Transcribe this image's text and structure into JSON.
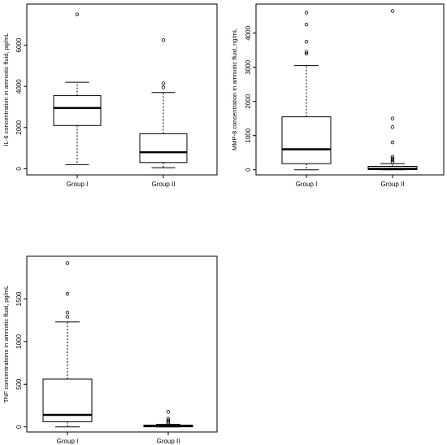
{
  "chart_data": [
    {
      "type": "boxplot",
      "ylabel": "IL-6 concentration in amniotic fluid, pg/mL",
      "categories": [
        "Group I",
        "Group II"
      ],
      "ylim": [
        -300,
        8000
      ],
      "yticks": [
        0,
        2000,
        4000,
        6000
      ],
      "boxes": [
        {
          "name": "Group I",
          "min": 200,
          "q1": 2100,
          "median": 2950,
          "q3": 3550,
          "max": 4200,
          "outliers": [
            7500
          ]
        },
        {
          "name": "Group II",
          "min": 50,
          "q1": 300,
          "median": 800,
          "q3": 1700,
          "max": 3700,
          "outliers": [
            3950,
            4150,
            6250
          ]
        }
      ]
    },
    {
      "type": "boxplot",
      "ylabel": "MMP-8 concentration in amniotic fluid, ng/mL",
      "categories": [
        "Group I",
        "Group II"
      ],
      "ylim": [
        -150,
        4850
      ],
      "yticks": [
        0,
        1000,
        2000,
        3000,
        4000
      ],
      "boxes": [
        {
          "name": "Group I",
          "min": 0,
          "q1": 180,
          "median": 600,
          "q3": 1550,
          "max": 3050,
          "outliers": [
            3400,
            3450,
            3750,
            4250,
            4600
          ]
        },
        {
          "name": "Group II",
          "min": 0,
          "q1": 5,
          "median": 30,
          "q3": 100,
          "max": 180,
          "outliers": [
            230,
            280,
            330,
            380,
            800,
            1250,
            1500,
            4650
          ]
        }
      ]
    },
    {
      "type": "boxplot",
      "ylabel": "TNF concentrations in amniotic fluid, pg/mL",
      "categories": [
        "Group I",
        "Group II"
      ],
      "ylim": [
        -60,
        2000
      ],
      "yticks": [
        0,
        500,
        1000,
        1500
      ],
      "boxes": [
        {
          "name": "Group I",
          "min": 0,
          "q1": 60,
          "median": 140,
          "q3": 560,
          "max": 1230,
          "outliers": [
            1290,
            1340,
            1560,
            1920
          ]
        },
        {
          "name": "Group II",
          "min": 0,
          "q1": 2,
          "median": 8,
          "q3": 20,
          "max": 30,
          "outliers": [
            45,
            60,
            75,
            95,
            175
          ]
        }
      ]
    }
  ]
}
